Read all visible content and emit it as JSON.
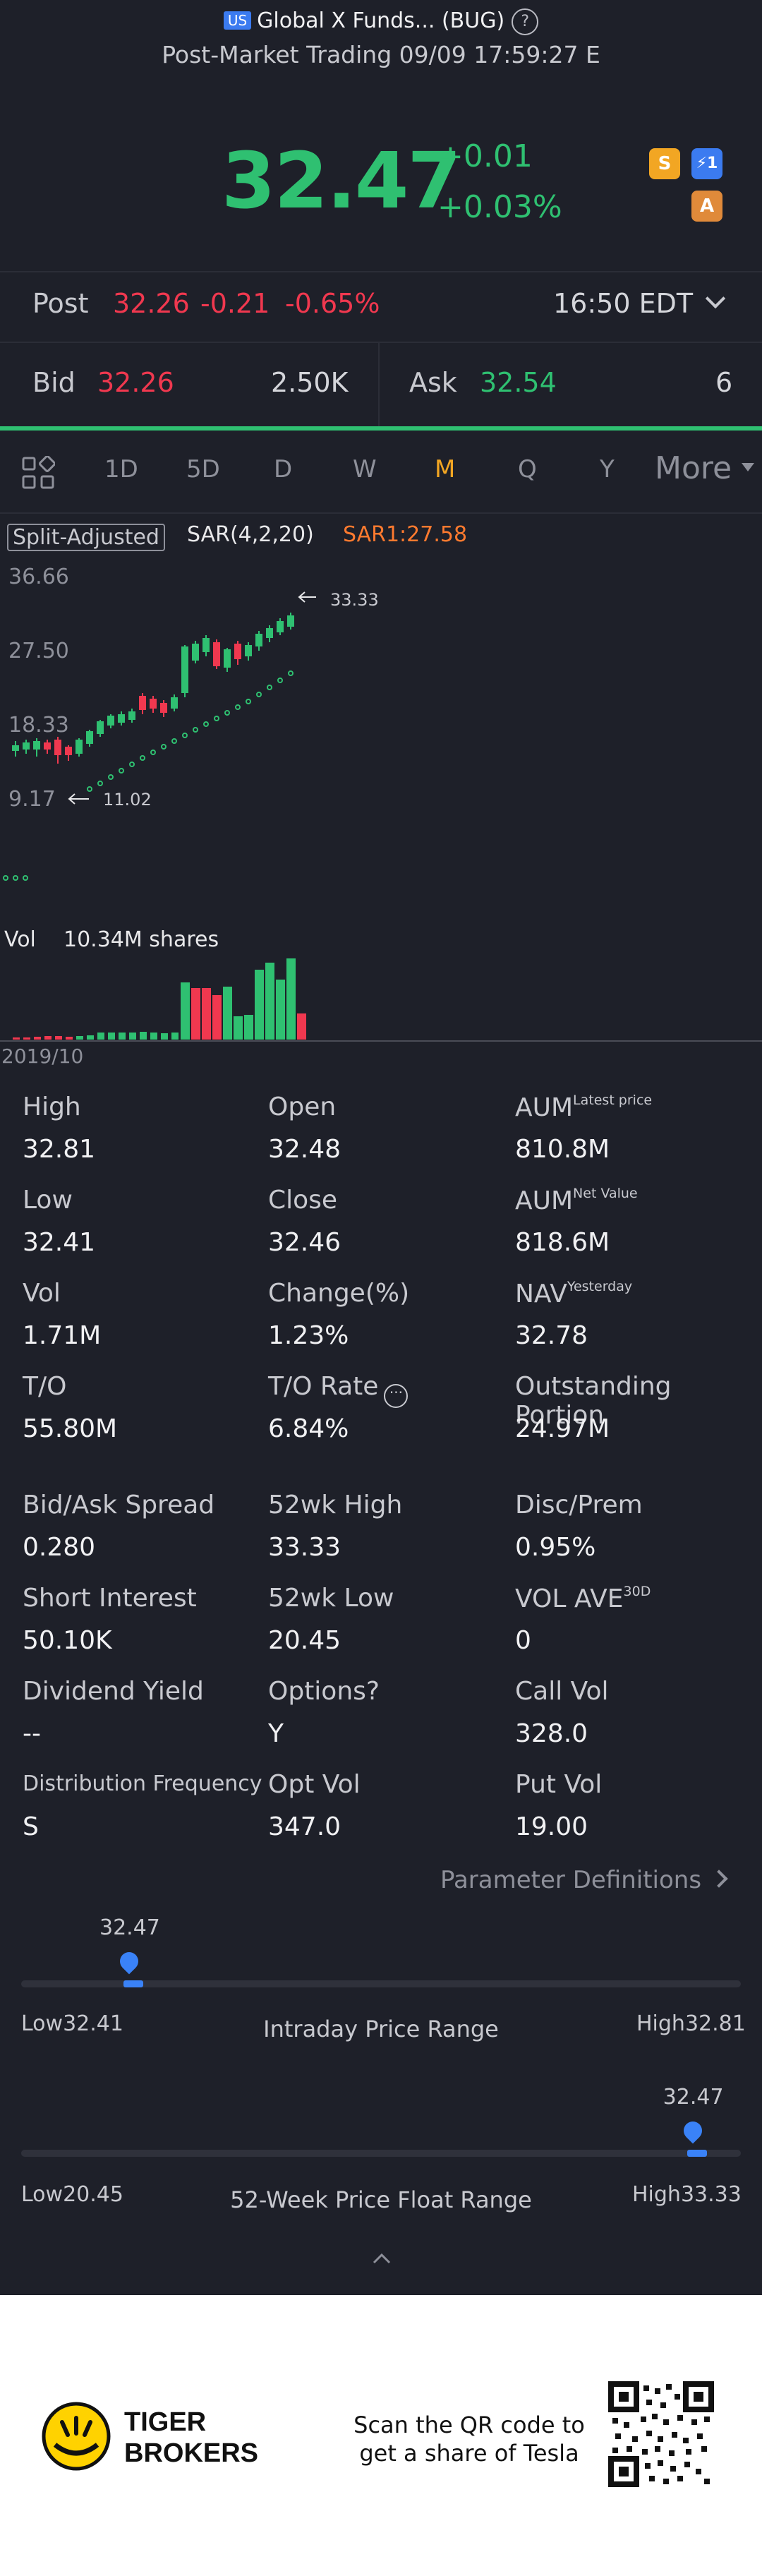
{
  "header": {
    "market_badge": "US",
    "title": "Global X Funds... (BUG)",
    "help_icon": "?",
    "subtitle": "Post-Market Trading 09/09 17:59:27 E"
  },
  "quote": {
    "price": "32.47",
    "change": "+0.01",
    "change_pct": "+0.03%",
    "badges": [
      "S",
      "⚡1",
      "A"
    ]
  },
  "post": {
    "label": "Post",
    "price": "32.26",
    "change": "-0.21",
    "change_pct": "-0.65%",
    "time": "16:50 EDT"
  },
  "bid_ask": {
    "bid_label": "Bid",
    "bid_price": "32.26",
    "bid_size": "2.50K",
    "ask_label": "Ask",
    "ask_price": "32.54",
    "ask_size": "6"
  },
  "tabs": [
    "1D",
    "5D",
    "D",
    "W",
    "M",
    "Q",
    "Y",
    "More"
  ],
  "active_tab": "M",
  "chart_header": {
    "split_adjusted": "Split-Adjusted",
    "sar": "SAR(4,2,20)",
    "sar1": "SAR1:27.58"
  },
  "chart_data": {
    "type": "candlestick",
    "interval": "monthly",
    "y_ticks": [
      "36.66",
      "27.50",
      "18.33",
      "9.17"
    ],
    "ylim": [
      9.17,
      36.66
    ],
    "high_marker": "33.33",
    "low_marker": "11.02",
    "start_label": "2019/10",
    "volume_label": "Vol",
    "volume_value": "10.34M shares",
    "colors": {
      "up": "#2fc071",
      "down": "#f0384f",
      "sar": "#2fc071"
    }
  },
  "stats": [
    {
      "label": "High",
      "value": "32.81"
    },
    {
      "label": "Open",
      "value": "32.48"
    },
    {
      "label": "AUM",
      "sup": "Latest price",
      "value": "810.8M"
    },
    {
      "label": "Low",
      "value": "32.41"
    },
    {
      "label": "Close",
      "value": "32.46"
    },
    {
      "label": "AUM",
      "sup": "Net Value",
      "value": "818.6M"
    },
    {
      "label": "Vol",
      "value": "1.71M"
    },
    {
      "label": "Change(%)",
      "value": "1.23%"
    },
    {
      "label": "NAV",
      "sup": "Yesterday",
      "value": "32.78"
    },
    {
      "label": "T/O",
      "value": "55.80M"
    },
    {
      "label": "T/O Rate",
      "value": "6.84%"
    },
    {
      "label": "Outstanding Portion",
      "value": "24.97M"
    },
    {
      "label": "Bid/Ask Spread",
      "value": "0.280"
    },
    {
      "label": "52wk High",
      "value": "33.33"
    },
    {
      "label": "Disc/Prem",
      "value": "0.95%"
    },
    {
      "label": "Short Interest",
      "value": "50.10K"
    },
    {
      "label": "52wk Low",
      "value": "20.45"
    },
    {
      "label": "VOL AVE",
      "sup": "30D",
      "value": "0"
    },
    {
      "label": "Dividend Yield",
      "value": "--"
    },
    {
      "label": "Options?",
      "value": "Y"
    },
    {
      "label": "Call Vol",
      "value": "328.0"
    },
    {
      "label": "Distribution Frequency",
      "value": "S"
    },
    {
      "label": "Opt Vol",
      "value": "347.0"
    },
    {
      "label": "Put Vol",
      "value": "19.00"
    }
  ],
  "param_link": "Parameter Definitions",
  "intraday_range": {
    "title": "Intraday Price Range",
    "low_label": "Low",
    "low": "32.41",
    "high_label": "High",
    "high": "32.81",
    "current": "32.47",
    "position": 0.15
  },
  "week52_range": {
    "title": "52-Week Price Float Range",
    "low_label": "Low",
    "low": "20.45",
    "high_label": "High",
    "high": "33.33",
    "current": "32.47",
    "position": 0.933
  },
  "footer": {
    "brand_line1": "TIGER",
    "brand_line2": "BROKERS",
    "cta_line1": "Scan the QR code to",
    "cta_line2": "get a share of Tesla"
  }
}
